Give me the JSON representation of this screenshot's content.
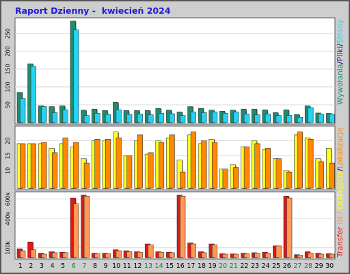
{
  "title": "Raport Dzienny -  kwiecień 2024",
  "colors": {
    "background": "#cecece",
    "panel": "#ffffff",
    "visits": "#1e8c6e",
    "sites": "#22d3f5",
    "pages": "#1d3ccf",
    "files": "#22d3f5",
    "hits": "#1e8c6e",
    "entry": "#ffff22",
    "exit": "#ff8800",
    "transfer_in": "#e01818",
    "transfer_out": "#ff9955",
    "weekend": "#0b8a2c",
    "tick": "#000000"
  },
  "chart_data": [
    {
      "type": "bar",
      "panel": "hits",
      "categories": [
        "1",
        "2",
        "3",
        "4",
        "5",
        "6",
        "7",
        "8",
        "9",
        "10",
        "11",
        "12",
        "13",
        "14",
        "15",
        "16",
        "17",
        "18",
        "19",
        "20",
        "21",
        "22",
        "23",
        "24",
        "25",
        "26",
        "27",
        "28",
        "29",
        "30"
      ],
      "weekend_days": [
        "6",
        "7",
        "13",
        "14",
        "20",
        "21",
        "27",
        "28"
      ],
      "y_ticks": [
        "50",
        "100",
        "150",
        "200",
        "250"
      ],
      "ylim": [
        0,
        290
      ],
      "right_label": [
        {
          "text": "Wywołania",
          "color": "#1e8c6e"
        },
        {
          "text": "/",
          "color": "#000000"
        },
        {
          "text": "Pliki",
          "color": "#1d3ccf"
        },
        {
          "text": "/",
          "color": "#000000"
        },
        {
          "text": "Strony",
          "color": "#22d3f5"
        }
      ],
      "series": [
        {
          "name": "Wywołania",
          "color": "#1e8c6e",
          "values": [
            85,
            165,
            47,
            45,
            47,
            285,
            35,
            38,
            34,
            57,
            34,
            34,
            34,
            40,
            35,
            30,
            45,
            40,
            35,
            32,
            35,
            38,
            38,
            36,
            28,
            36,
            23,
            47,
            27,
            26
          ]
        },
        {
          "name": "Pliki",
          "color": "#22d3f5",
          "values": [
            68,
            158,
            45,
            28,
            36,
            260,
            20,
            26,
            23,
            36,
            23,
            24,
            22,
            26,
            25,
            20,
            30,
            28,
            30,
            26,
            30,
            24,
            22,
            24,
            20,
            20,
            15,
            42,
            24,
            24
          ]
        }
      ]
    },
    {
      "type": "bar",
      "panel": "entry-exit",
      "categories": [
        "1",
        "2",
        "3",
        "4",
        "5",
        "6",
        "7",
        "8",
        "9",
        "10",
        "11",
        "12",
        "13",
        "14",
        "15",
        "16",
        "17",
        "18",
        "19",
        "20",
        "21",
        "22",
        "23",
        "24",
        "25",
        "26",
        "27",
        "28",
        "29",
        "30"
      ],
      "y_ticks": [
        "10",
        "15",
        "20"
      ],
      "ylim": [
        4,
        24.5
      ],
      "right_label": [
        {
          "text": "Wejścia",
          "color": "#ffff22"
        },
        {
          "text": "/",
          "color": "#000000"
        },
        {
          "text": "Lokalizacje",
          "color": "#ff8800"
        }
      ],
      "series": [
        {
          "name": "Wejścia",
          "color": "#ffff22",
          "values": [
            19,
            19,
            19,
            17.5,
            19,
            18,
            14,
            20,
            20,
            23,
            15,
            20,
            15.5,
            20,
            21,
            13.5,
            22,
            19,
            20.5,
            10.5,
            12,
            18,
            20,
            17,
            14,
            10,
            22,
            21,
            14,
            17.5
          ]
        },
        {
          "name": "Lokalizacje",
          "color": "#ff8800",
          "values": [
            19,
            19,
            19.5,
            16,
            21,
            19.5,
            12.5,
            20.5,
            20.5,
            21,
            15,
            22,
            16,
            19.5,
            22,
            9.5,
            23,
            20,
            19.5,
            10.5,
            11,
            18,
            19,
            17.5,
            14,
            9.5,
            23,
            20.5,
            13,
            12.5
          ]
        }
      ]
    },
    {
      "type": "bar",
      "panel": "transfer",
      "categories": [
        "1",
        "2",
        "3",
        "4",
        "5",
        "6",
        "7",
        "8",
        "9",
        "10",
        "11",
        "12",
        "13",
        "14",
        "15",
        "16",
        "17",
        "18",
        "19",
        "20",
        "21",
        "22",
        "23",
        "24",
        "25",
        "26",
        "27",
        "28",
        "29",
        "30"
      ],
      "y_ticks": [
        "100k",
        "400k",
        "600k"
      ],
      "ylim": [
        0,
        660
      ],
      "right_label": [
        {
          "text": "Transfer",
          "color": "#e01818"
        },
        {
          "text": " IN /",
          "color": "#ff9955"
        },
        {
          "text": " OUT",
          "color": "#ffff22"
        }
      ],
      "series": [
        {
          "name": "IN",
          "color": "#e01818",
          "values": [
            90,
            160,
            45,
            60,
            55,
            610,
            640,
            45,
            45,
            80,
            70,
            60,
            140,
            60,
            55,
            640,
            150,
            60,
            140,
            40,
            38,
            45,
            50,
            55,
            120,
            630,
            30,
            60,
            45,
            40
          ]
        },
        {
          "name": "OUT",
          "color": "#ff9955",
          "values": [
            70,
            80,
            35,
            50,
            50,
            550,
            630,
            40,
            40,
            70,
            60,
            55,
            130,
            55,
            50,
            630,
            140,
            50,
            130,
            35,
            35,
            40,
            45,
            45,
            120,
            610,
            25,
            45,
            35,
            35
          ]
        }
      ]
    }
  ]
}
